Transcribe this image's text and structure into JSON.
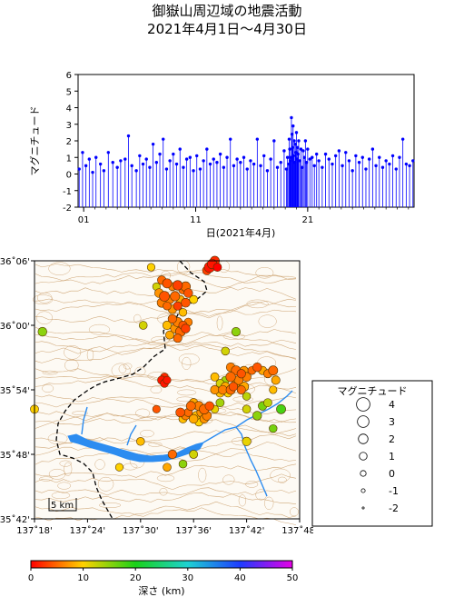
{
  "title": "御嶽山周辺域の地震活動",
  "subtitle": "2021年4月1日～4月30日",
  "colors": {
    "stick": "#0000ff",
    "lake": "#2c8cf0",
    "contour": "#c89a64",
    "boundary": "#000000",
    "quake_stroke": "#553300"
  },
  "chart_data": [
    {
      "type": "scatter",
      "name": "magnitude_time",
      "ylabel": "マグニチュード",
      "xlabel": "日(2021年4月)",
      "ylim": [
        -2,
        6
      ],
      "xlim": [
        0.5,
        30.5
      ],
      "yticks": [
        "-2",
        "-1",
        "0",
        "1",
        "2",
        "3",
        "4",
        "5",
        "6"
      ],
      "xticks": [
        "01",
        "11",
        "21"
      ],
      "stick_base": -2,
      "x": [
        0.6,
        0.9,
        1.2,
        1.5,
        1.8,
        2.1,
        2.5,
        2.8,
        3.2,
        3.6,
        4.0,
        4.3,
        4.7,
        5.0,
        5.3,
        5.7,
        6.0,
        6.3,
        6.6,
        6.9,
        7.2,
        7.5,
        7.8,
        8.1,
        8.4,
        8.7,
        9.0,
        9.3,
        9.6,
        9.9,
        10.2,
        10.5,
        10.8,
        11.1,
        11.4,
        11.7,
        12.0,
        12.3,
        12.6,
        12.9,
        13.2,
        13.5,
        13.8,
        14.1,
        14.4,
        14.7,
        15.0,
        15.3,
        15.6,
        15.9,
        16.2,
        16.5,
        16.8,
        17.1,
        17.4,
        17.7,
        18.0,
        18.3,
        18.6,
        18.9,
        19.1,
        19.2,
        19.3,
        19.35,
        19.4,
        19.45,
        19.5,
        19.55,
        19.6,
        19.65,
        19.7,
        19.75,
        19.8,
        19.85,
        19.9,
        19.95,
        20.0,
        20.05,
        20.1,
        20.15,
        20.2,
        20.3,
        20.4,
        20.5,
        20.6,
        20.7,
        20.8,
        20.9,
        21.0,
        21.2,
        21.4,
        21.6,
        21.8,
        22.0,
        22.3,
        22.6,
        22.9,
        23.2,
        23.5,
        23.8,
        24.1,
        24.4,
        24.7,
        25.0,
        25.3,
        25.6,
        25.9,
        26.2,
        26.5,
        26.8,
        27.1,
        27.4,
        27.7,
        28.0,
        28.3,
        28.6,
        28.9,
        29.2,
        29.5,
        29.8,
        30.1,
        30.4
      ],
      "y": [
        0.3,
        1.3,
        0.5,
        0.9,
        0.1,
        1.0,
        0.6,
        0.2,
        1.3,
        0.7,
        0.4,
        0.8,
        0.9,
        2.3,
        0.5,
        0.2,
        1.1,
        0.6,
        0.9,
        0.4,
        1.8,
        0.7,
        1.2,
        2.1,
        0.3,
        0.8,
        1.2,
        0.6,
        1.5,
        0.4,
        0.9,
        1.0,
        0.2,
        1.1,
        0.3,
        0.8,
        1.5,
        0.6,
        0.9,
        0.7,
        1.2,
        0.4,
        1.0,
        2.1,
        0.5,
        0.9,
        0.7,
        1.0,
        0.3,
        0.8,
        0.6,
        2.1,
        0.5,
        1.1,
        0.2,
        0.9,
        2.0,
        0.4,
        0.7,
        1.4,
        0.3,
        1.0,
        0.6,
        2.1,
        1.5,
        0.8,
        1.0,
        3.4,
        2.4,
        1.6,
        2.9,
        1.1,
        2.0,
        0.7,
        1.8,
        1.3,
        2.5,
        0.9,
        1.6,
        1.2,
        2.0,
        0.8,
        1.5,
        0.4,
        1.4,
        1.0,
        2.0,
        0.7,
        1.5,
        0.9,
        1.0,
        0.5,
        1.2,
        0.8,
        0.4,
        1.2,
        0.9,
        0.6,
        1.1,
        1.4,
        0.5,
        1.3,
        0.8,
        0.2,
        1.1,
        0.7,
        1.0,
        0.3,
        0.9,
        1.5,
        0.5,
        1.0,
        0.4,
        0.8,
        0.6,
        1.1,
        0.3,
        1.0,
        2.1,
        0.6,
        0.5,
        0.8
      ]
    },
    {
      "type": "scatter",
      "name": "epicenter_map",
      "xticks": [
        "137˚18'",
        "137˚24'",
        "137˚30'",
        "137˚36'",
        "137˚42'",
        "137˚48'"
      ],
      "yticks": [
        "35˚42'",
        "35˚48'",
        "35˚54'",
        "36˚00'",
        "36˚06'"
      ],
      "lon_range": [
        137.3,
        137.8
      ],
      "lat_range": [
        35.7,
        36.1
      ],
      "scale_label": "5 km",
      "columns": [
        "lon",
        "lat",
        "depth_km",
        "magnitude"
      ],
      "points": [
        [
          137.54,
          36.07,
          5,
          1.5
        ],
        [
          137.55,
          36.065,
          4,
          1.8
        ],
        [
          137.56,
          36.06,
          6,
          1.2
        ],
        [
          137.57,
          36.062,
          3,
          2.0
        ],
        [
          137.58,
          36.055,
          5,
          1.4
        ],
        [
          137.535,
          36.05,
          7,
          1.6
        ],
        [
          137.545,
          36.045,
          4,
          2.2
        ],
        [
          137.555,
          36.04,
          6,
          1.5
        ],
        [
          137.565,
          36.045,
          5,
          1.9
        ],
        [
          137.575,
          36.04,
          8,
          1.3
        ],
        [
          137.585,
          36.035,
          4,
          1.7
        ],
        [
          137.55,
          36.03,
          5,
          1.2
        ],
        [
          137.56,
          36.025,
          7,
          1.6
        ],
        [
          137.57,
          36.03,
          3,
          1.4
        ],
        [
          137.54,
          36.035,
          6,
          1.8
        ],
        [
          137.58,
          36.02,
          9,
          1.1
        ],
        [
          137.585,
          36.06,
          5,
          2.0
        ],
        [
          137.59,
          36.05,
          4,
          1.6
        ],
        [
          137.53,
          36.06,
          12,
          1.0
        ],
        [
          137.6,
          36.04,
          10,
          1.3
        ],
        [
          137.56,
          36.01,
          5,
          1.5
        ],
        [
          137.57,
          36.005,
          6,
          1.8
        ],
        [
          137.58,
          36.0,
          4,
          1.4
        ],
        [
          137.565,
          35.995,
          7,
          1.7
        ],
        [
          137.575,
          35.99,
          5,
          2.1
        ],
        [
          137.555,
          35.985,
          8,
          1.3
        ],
        [
          137.585,
          35.995,
          3,
          1.6
        ],
        [
          137.59,
          36.005,
          6,
          1.2
        ],
        [
          137.55,
          36.0,
          9,
          1.5
        ],
        [
          137.57,
          35.98,
          5,
          1.4
        ],
        [
          137.63,
          36.09,
          1,
          2.4
        ],
        [
          137.635,
          36.095,
          1,
          2.0
        ],
        [
          137.64,
          36.1,
          2,
          1.8
        ],
        [
          137.625,
          36.085,
          3,
          1.5
        ],
        [
          137.645,
          36.09,
          0,
          1.3
        ],
        [
          137.315,
          35.99,
          15,
          1.6
        ],
        [
          137.505,
          36.0,
          12,
          1.2
        ],
        [
          137.52,
          36.09,
          10,
          1.0
        ],
        [
          137.66,
          35.96,
          12,
          1.2
        ],
        [
          137.68,
          35.99,
          15,
          1.5
        ],
        [
          137.67,
          35.935,
          6,
          1.6
        ],
        [
          137.68,
          35.93,
          5,
          1.9
        ],
        [
          137.69,
          35.925,
          4,
          1.5
        ],
        [
          137.695,
          35.93,
          7,
          1.4
        ],
        [
          137.7,
          35.92,
          6,
          1.7
        ],
        [
          137.71,
          35.93,
          5,
          1.2
        ],
        [
          137.72,
          35.935,
          4,
          1.6
        ],
        [
          137.73,
          35.93,
          8,
          1.4
        ],
        [
          137.74,
          35.925,
          6,
          1.3
        ],
        [
          137.75,
          35.93,
          5,
          1.8
        ],
        [
          137.64,
          35.92,
          9,
          1.3
        ],
        [
          137.65,
          35.91,
          12,
          1.2
        ],
        [
          137.66,
          35.905,
          8,
          1.6
        ],
        [
          137.67,
          35.9,
          5,
          1.8
        ],
        [
          137.675,
          35.905,
          4,
          1.5
        ],
        [
          137.68,
          35.91,
          7,
          1.3
        ],
        [
          137.685,
          35.915,
          6,
          1.7
        ],
        [
          137.69,
          35.9,
          5,
          1.4
        ],
        [
          137.695,
          35.905,
          8,
          1.9
        ],
        [
          137.665,
          35.895,
          10,
          1.2
        ],
        [
          137.655,
          35.9,
          6,
          1.6
        ],
        [
          137.66,
          35.915,
          14,
          1.1
        ],
        [
          137.67,
          35.92,
          5,
          2.0
        ],
        [
          137.64,
          35.9,
          7,
          1.5
        ],
        [
          137.65,
          35.895,
          9,
          1.3
        ],
        [
          137.6,
          35.88,
          8,
          1.5
        ],
        [
          137.61,
          35.875,
          6,
          1.8
        ],
        [
          137.62,
          35.87,
          5,
          2.1
        ],
        [
          137.63,
          35.875,
          4,
          1.6
        ],
        [
          137.615,
          35.865,
          7,
          1.9
        ],
        [
          137.605,
          35.86,
          9,
          1.4
        ],
        [
          137.625,
          35.86,
          6,
          1.7
        ],
        [
          137.59,
          35.865,
          5,
          1.3
        ],
        [
          137.6,
          35.855,
          8,
          1.6
        ],
        [
          137.61,
          35.85,
          10,
          1.2
        ],
        [
          137.62,
          35.855,
          7,
          1.5
        ],
        [
          137.595,
          35.875,
          5,
          1.8
        ],
        [
          137.585,
          35.86,
          6,
          1.4
        ],
        [
          137.575,
          35.865,
          4,
          1.7
        ],
        [
          137.58,
          35.855,
          9,
          1.3
        ],
        [
          137.64,
          35.87,
          11,
          1.0
        ],
        [
          137.65,
          35.88,
          14,
          1.3
        ],
        [
          137.7,
          35.87,
          12,
          1.2
        ],
        [
          137.72,
          35.86,
          15,
          1.6
        ],
        [
          137.73,
          35.875,
          16,
          1.5
        ],
        [
          137.74,
          35.88,
          13,
          1.3
        ],
        [
          137.765,
          35.87,
          18,
          1.8
        ],
        [
          137.75,
          35.9,
          9,
          1.0
        ],
        [
          137.7,
          35.89,
          13,
          1.1
        ],
        [
          137.755,
          35.915,
          8,
          1.4
        ],
        [
          137.54,
          35.915,
          1,
          1.4
        ],
        [
          137.545,
          35.91,
          1,
          1.2
        ],
        [
          137.55,
          35.915,
          1,
          1.0
        ],
        [
          137.545,
          35.92,
          2,
          1.1
        ],
        [
          137.3,
          35.87,
          10,
          1.3
        ],
        [
          137.5,
          35.82,
          9,
          1.2
        ],
        [
          137.56,
          35.8,
          5,
          1.5
        ],
        [
          137.6,
          35.8,
          12,
          1.3
        ],
        [
          137.58,
          35.785,
          15,
          1.2
        ],
        [
          137.7,
          35.82,
          11,
          1.5
        ],
        [
          137.75,
          35.84,
          16,
          1.1
        ],
        [
          137.46,
          35.78,
          10,
          1.0
        ],
        [
          137.55,
          35.78,
          8,
          1.2
        ],
        [
          137.53,
          35.87,
          4,
          1.0
        ]
      ]
    }
  ],
  "legend": {
    "title": "マグニチュード",
    "entries": [
      {
        "label": "4",
        "mag": 4
      },
      {
        "label": "3",
        "mag": 3
      },
      {
        "label": "2",
        "mag": 2
      },
      {
        "label": "1",
        "mag": 1
      },
      {
        "label": "0",
        "mag": 0
      },
      {
        "label": "-1",
        "mag": -1
      },
      {
        "label": "-2",
        "mag": -2
      }
    ]
  },
  "colorbar": {
    "label": "深さ (km)",
    "ticks": [
      "0",
      "10",
      "20",
      "30",
      "40",
      "50"
    ],
    "range": [
      0,
      50
    ]
  }
}
